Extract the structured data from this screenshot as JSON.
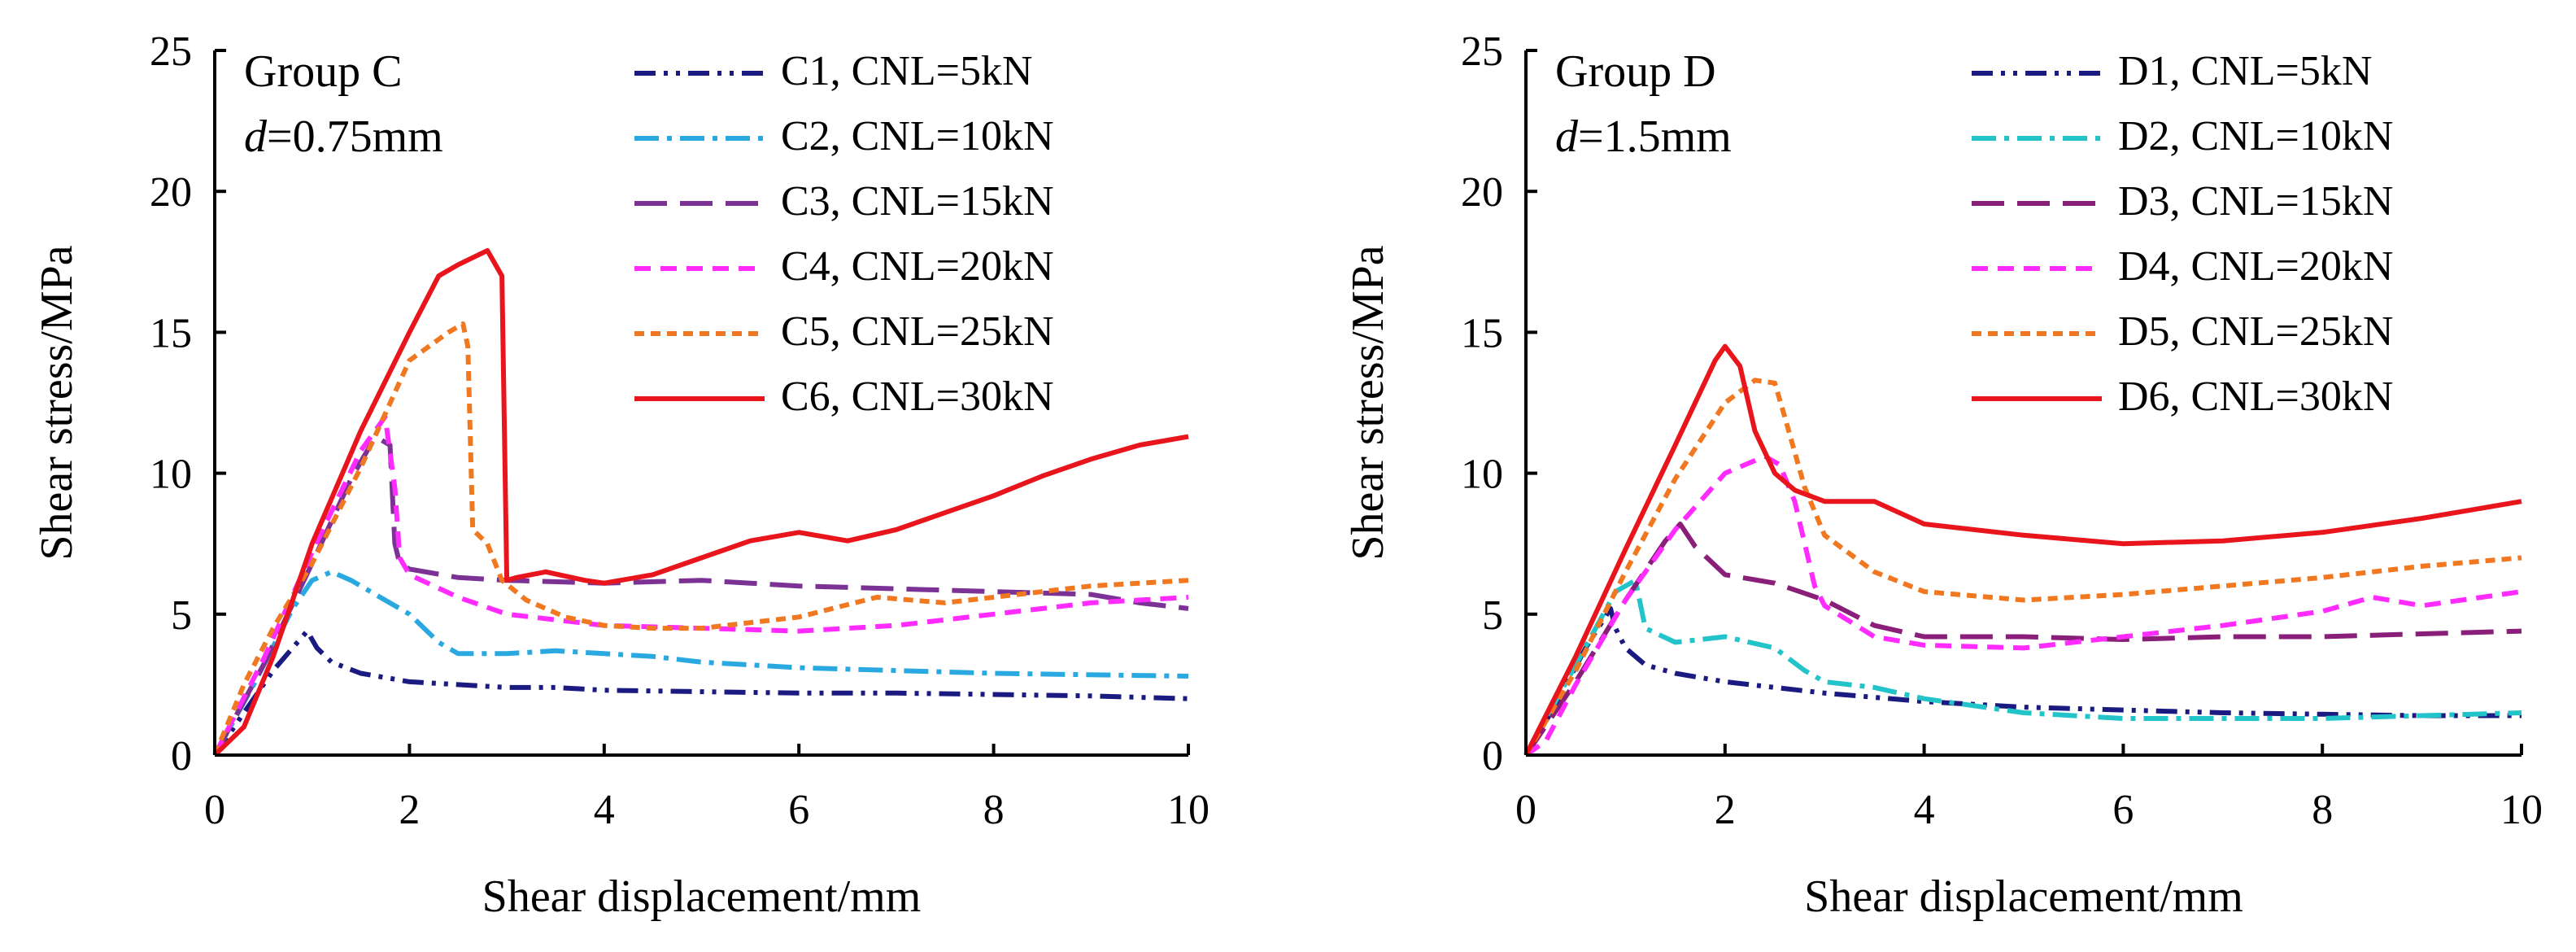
{
  "chart_data": [
    {
      "type": "line",
      "group_label": "Group C",
      "param_symbol": "d",
      "param_value": "=0.75mm",
      "xlabel": "Shear displacement/mm",
      "ylabel": "Shear stress/MPa",
      "xlim": [
        0,
        10
      ],
      "ylim": [
        0,
        25
      ],
      "xticks": [
        0,
        2,
        4,
        6,
        8,
        10
      ],
      "yticks": [
        0,
        5,
        10,
        15,
        20,
        25
      ],
      "grid": false,
      "legend_position": "top-right",
      "series": [
        {
          "name": "C1, CNL=5kN",
          "color": "#1a1a80",
          "dash": "dashdotdot",
          "x": [
            0,
            0.3,
            0.6,
            0.85,
            0.95,
            1.05,
            1.2,
            1.5,
            2.0,
            2.5,
            3.0,
            3.5,
            4.0,
            5.0,
            6.0,
            7.0,
            8.0,
            9.0,
            10.0
          ],
          "y": [
            0,
            1.5,
            3.0,
            4.0,
            4.4,
            3.8,
            3.3,
            2.9,
            2.6,
            2.5,
            2.4,
            2.4,
            2.3,
            2.25,
            2.2,
            2.2,
            2.15,
            2.1,
            2.0
          ]
        },
        {
          "name": "C2, CNL=10kN",
          "color": "#29a9e0",
          "dash": "dashdot",
          "x": [
            0,
            0.4,
            0.8,
            1.0,
            1.2,
            1.4,
            1.6,
            2.0,
            2.3,
            2.5,
            3.0,
            3.5,
            4.0,
            4.5,
            5.0,
            6.0,
            7.0,
            8.0,
            9.0,
            10.0
          ],
          "y": [
            0,
            2.5,
            5.2,
            6.2,
            6.5,
            6.2,
            5.8,
            5.0,
            4.0,
            3.6,
            3.6,
            3.7,
            3.6,
            3.5,
            3.3,
            3.1,
            3.0,
            2.9,
            2.85,
            2.8
          ]
        },
        {
          "name": "C3, CNL=15kN",
          "color": "#7b3294",
          "dash": "longdash",
          "x": [
            0,
            0.5,
            1.0,
            1.4,
            1.65,
            1.8,
            1.85,
            1.9,
            2.0,
            2.5,
            3.0,
            4.0,
            5.0,
            5.5,
            6.0,
            7.0,
            8.0,
            9.0,
            9.5,
            10.0
          ],
          "y": [
            0,
            3.2,
            6.8,
            9.8,
            11.3,
            11.0,
            7.5,
            6.8,
            6.6,
            6.3,
            6.2,
            6.1,
            6.2,
            6.1,
            6.0,
            5.9,
            5.8,
            5.7,
            5.4,
            5.2
          ]
        },
        {
          "name": "C4, CNL=20kN",
          "color": "#ff2bff",
          "dash": "dash",
          "x": [
            0,
            0.5,
            1.0,
            1.5,
            1.75,
            1.85,
            1.9,
            2.0,
            2.5,
            3.0,
            4.0,
            5.0,
            6.0,
            7.0,
            8.0,
            9.0,
            10.0
          ],
          "y": [
            0,
            3.4,
            7.2,
            10.8,
            12.0,
            9.5,
            7.0,
            6.4,
            5.6,
            5.0,
            4.6,
            4.5,
            4.4,
            4.6,
            5.0,
            5.4,
            5.6
          ]
        },
        {
          "name": "C5, CNL=25kN",
          "color": "#f07820",
          "dash": "shortdash",
          "x": [
            0,
            0.3,
            0.6,
            1.0,
            1.5,
            2.0,
            2.4,
            2.55,
            2.6,
            2.65,
            2.8,
            2.95,
            3.2,
            3.6,
            4.0,
            4.5,
            5.0,
            6.0,
            6.8,
            7.5,
            8.0,
            9.0,
            10.0
          ],
          "y": [
            0,
            2.5,
            4.5,
            6.8,
            10.2,
            14.0,
            15.0,
            15.3,
            14.5,
            8.0,
            7.5,
            6.2,
            5.5,
            4.9,
            4.6,
            4.5,
            4.5,
            4.9,
            5.6,
            5.4,
            5.6,
            6.0,
            6.2
          ]
        },
        {
          "name": "C6, CNL=30kN",
          "color": "#e8161c",
          "dash": "solid",
          "x": [
            0,
            0.3,
            0.6,
            1.0,
            1.5,
            2.0,
            2.3,
            2.5,
            2.8,
            2.95,
            3.0,
            3.1,
            3.4,
            3.8,
            4.0,
            4.5,
            5.0,
            5.5,
            6.0,
            6.5,
            7.0,
            7.5,
            8.0,
            8.5,
            9.0,
            9.5,
            10.0
          ],
          "y": [
            0,
            1.0,
            3.5,
            7.5,
            11.5,
            15.0,
            17.0,
            17.4,
            17.9,
            17.0,
            6.2,
            6.3,
            6.5,
            6.2,
            6.1,
            6.4,
            7.0,
            7.6,
            7.9,
            7.6,
            8.0,
            8.6,
            9.2,
            9.9,
            10.5,
            11.0,
            11.3
          ]
        }
      ]
    },
    {
      "type": "line",
      "group_label": "Group D",
      "param_symbol": "d",
      "param_value": "=1.5mm",
      "xlabel": "Shear displacement/mm",
      "ylabel": "Shear stress/MPa",
      "xlim": [
        0,
        10
      ],
      "ylim": [
        0,
        25
      ],
      "xticks": [
        0,
        2,
        4,
        6,
        8,
        10
      ],
      "yticks": [
        0,
        5,
        10,
        15,
        20,
        25
      ],
      "grid": false,
      "legend_position": "top-right",
      "series": [
        {
          "name": "D1, CNL=5kN",
          "color": "#1a1a80",
          "dash": "dashdotdot",
          "x": [
            0,
            0.3,
            0.6,
            0.85,
            0.9,
            1.0,
            1.2,
            1.5,
            2.0,
            2.5,
            3.0,
            4.0,
            5.0,
            6.0,
            7.0,
            8.0,
            9.0,
            10.0
          ],
          "y": [
            0,
            1.8,
            3.8,
            5.2,
            4.5,
            3.8,
            3.2,
            2.9,
            2.6,
            2.4,
            2.2,
            1.9,
            1.7,
            1.6,
            1.5,
            1.45,
            1.4,
            1.4
          ]
        },
        {
          "name": "D2, CNL=10kN",
          "color": "#22c3c9",
          "dash": "dashdot",
          "x": [
            0,
            0.5,
            0.9,
            1.1,
            1.2,
            1.5,
            2.0,
            2.5,
            2.8,
            3.0,
            3.5,
            4.0,
            5.0,
            6.0,
            7.0,
            8.0,
            9.0,
            10.0
          ],
          "y": [
            0,
            3.2,
            5.8,
            6.2,
            4.5,
            4.0,
            4.2,
            3.8,
            3.0,
            2.6,
            2.4,
            2.0,
            1.5,
            1.3,
            1.3,
            1.3,
            1.4,
            1.5
          ]
        },
        {
          "name": "D3, CNL=15kN",
          "color": "#8a1f7a",
          "dash": "longdash",
          "x": [
            0,
            0.5,
            1.0,
            1.4,
            1.55,
            1.7,
            2.0,
            2.5,
            3.0,
            3.5,
            4.0,
            5.0,
            6.0,
            7.0,
            8.0,
            9.0,
            10.0
          ],
          "y": [
            0,
            2.6,
            5.5,
            7.6,
            8.2,
            7.4,
            6.4,
            6.1,
            5.5,
            4.6,
            4.2,
            4.2,
            4.1,
            4.2,
            4.2,
            4.3,
            4.4
          ]
        },
        {
          "name": "D4, CNL=20kN",
          "color": "#ff2bff",
          "dash": "dash",
          "x": [
            0,
            0.2,
            0.5,
            1.0,
            1.5,
            2.0,
            2.4,
            2.55,
            2.7,
            2.9,
            3.0,
            3.5,
            4.0,
            5.0,
            6.0,
            7.0,
            8.0,
            8.5,
            9.0,
            10.0
          ],
          "y": [
            0,
            0.5,
            2.5,
            5.5,
            8.0,
            10.0,
            10.6,
            10.3,
            9.0,
            6.0,
            5.3,
            4.2,
            3.9,
            3.8,
            4.2,
            4.6,
            5.1,
            5.6,
            5.3,
            5.8
          ]
        },
        {
          "name": "D5, CNL=25kN",
          "color": "#f07820",
          "dash": "shortdash",
          "x": [
            0,
            0.5,
            1.0,
            1.5,
            2.0,
            2.3,
            2.5,
            2.6,
            2.8,
            3.0,
            3.5,
            4.0,
            5.0,
            6.0,
            7.0,
            8.0,
            9.0,
            10.0
          ],
          "y": [
            0,
            3.0,
            6.5,
            9.8,
            12.5,
            13.3,
            13.2,
            12.0,
            9.5,
            7.8,
            6.5,
            5.8,
            5.5,
            5.7,
            6.0,
            6.3,
            6.7,
            7.0
          ]
        },
        {
          "name": "D6, CNL=30kN",
          "color": "#e8161c",
          "dash": "solid",
          "x": [
            0,
            0.5,
            1.0,
            1.5,
            1.9,
            2.0,
            2.15,
            2.3,
            2.5,
            2.7,
            3.0,
            3.5,
            4.0,
            5.0,
            6.0,
            7.0,
            8.0,
            9.0,
            10.0
          ],
          "y": [
            0,
            3.5,
            7.3,
            11.0,
            14.0,
            14.5,
            13.8,
            11.5,
            10.0,
            9.4,
            9.0,
            9.0,
            8.2,
            7.8,
            7.5,
            7.6,
            7.9,
            8.4,
            9.0
          ]
        }
      ]
    }
  ]
}
